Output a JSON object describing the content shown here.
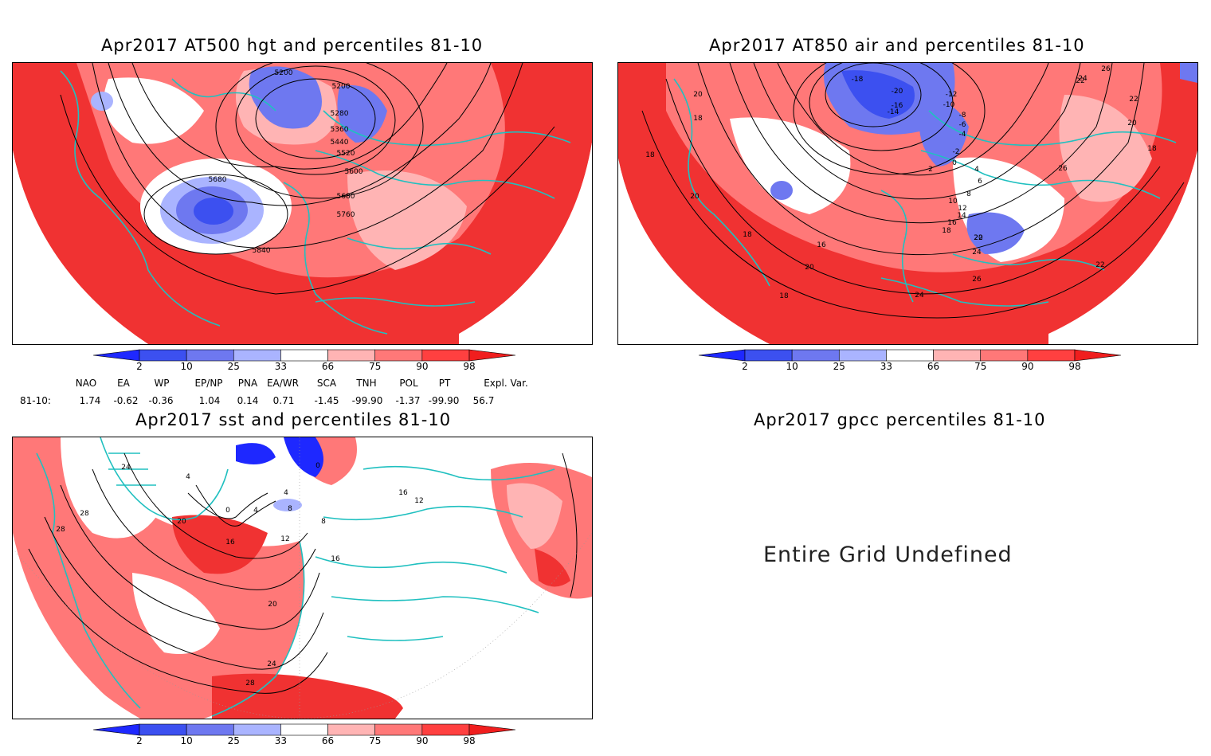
{
  "panels": {
    "hgt": {
      "title": "Apr2017 AT500 hgt and percentiles 81-10",
      "contour_labels": [
        "5200",
        "5200",
        "5280",
        "5360",
        "5440",
        "5520",
        "5600",
        "5680",
        "5680",
        "5760",
        "5840"
      ]
    },
    "air": {
      "title": "Apr2017 AT850 air and percentiles 81-10",
      "contour_labels": [
        "-18",
        "-20",
        "-16",
        "-14",
        "-12",
        "-10",
        "-8",
        "-6",
        "-4",
        "-2",
        "0",
        "2",
        "4",
        "6",
        "8",
        "10",
        "12",
        "14",
        "16",
        "18",
        "20",
        "22",
        "24",
        "26",
        "24",
        "26",
        "22",
        "20",
        "20",
        "18",
        "18",
        "18",
        "20",
        "16",
        "20",
        "18",
        "18",
        "22",
        "22",
        "24",
        "26"
      ]
    },
    "sst": {
      "title": "Apr2017 sst and percentiles 81-10",
      "contour_labels": [
        "24",
        "28",
        "28",
        "20",
        "4",
        "0",
        "4",
        "8",
        "16",
        "12",
        "16",
        "20",
        "24",
        "28",
        "0",
        "4",
        "8",
        "12",
        "16"
      ]
    },
    "gpcc": {
      "title": "Apr2017 gpcc percentiles 81-10",
      "message": "Entire Grid Undefined"
    }
  },
  "colorbar": {
    "ticks": [
      "2",
      "10",
      "25",
      "33",
      "66",
      "75",
      "90",
      "98"
    ],
    "colors": [
      "#1e28ff",
      "#3c50f0",
      "#6e78f0",
      "#aab4ff",
      "#ffffff",
      "#ffb4b4",
      "#ff7878",
      "#ff4040",
      "#f01e1e"
    ]
  },
  "indices": {
    "headers": [
      "NAO",
      "EA",
      "WP",
      "EP/NP",
      "PNA",
      "EA/WR",
      "SCA",
      "TNH",
      "POL",
      "PT",
      "Expl. Var."
    ],
    "row_label": "81-10:",
    "values": [
      "1.74",
      "-0.62",
      "-0.36",
      "1.04",
      "0.14",
      "0.71",
      "-1.45",
      "-99.90",
      "-1.37",
      "-99.90",
      "56.7"
    ]
  }
}
